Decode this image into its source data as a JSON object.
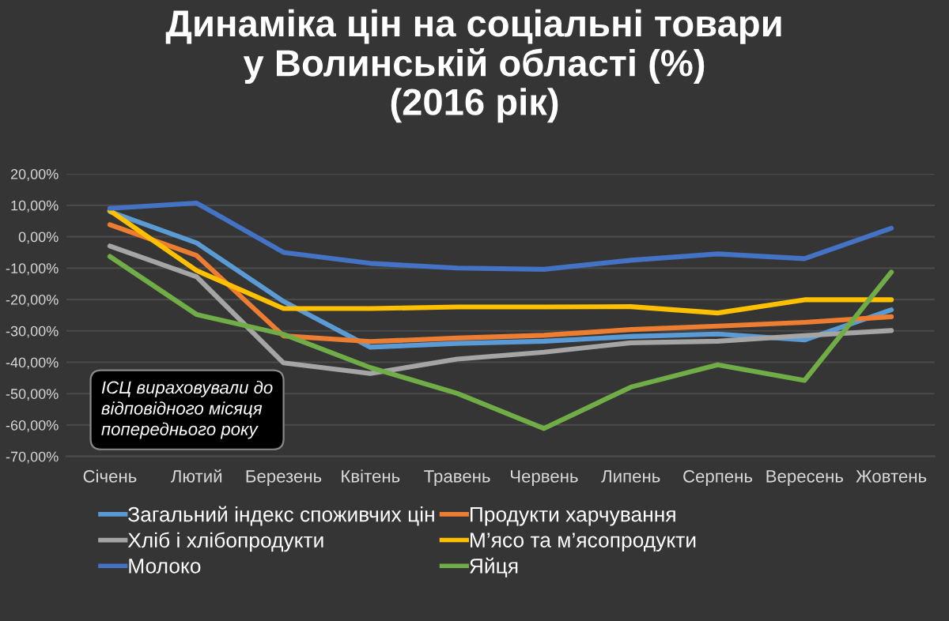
{
  "chart_data": {
    "type": "line",
    "title": "Динаміка цін на соціальні товари\nу Волинській області (%)\n(2016 рік)",
    "categories": [
      "Січень",
      "Лютий",
      "Березень",
      "Квітень",
      "Травень",
      "Червень",
      "Липень",
      "Серпень",
      "Вересень",
      "Жовтень"
    ],
    "series": [
      {
        "name": "Загальний індекс споживчих цін",
        "color": "#5b9bd5",
        "values": [
          8,
          -2,
          -20.6,
          -35.2,
          -34,
          -33.3,
          -31.8,
          -31,
          -32.9,
          -23.3
        ]
      },
      {
        "name": "Продукти харчування",
        "color": "#ed7d31",
        "values": [
          3.8,
          -6,
          -31.6,
          -33.4,
          -32.3,
          -31.4,
          -29.6,
          -28.5,
          -27.3,
          -25.5
        ]
      },
      {
        "name": "Хліб і хлібопродукти",
        "color": "#a5a5a5",
        "values": [
          -3,
          -12.8,
          -40.2,
          -43.6,
          -39,
          -36.8,
          -33.8,
          -33.3,
          -31.5,
          -29.9
        ]
      },
      {
        "name": "М’ясо та м’ясопродукти",
        "color": "#ffc000",
        "values": [
          8.3,
          -10.8,
          -22.9,
          -22.9,
          -22.4,
          -22.4,
          -22.3,
          -24.3,
          -20.1,
          -20.1
        ]
      },
      {
        "name": "Молоко",
        "color": "#4472c4",
        "values": [
          9,
          10.7,
          -5,
          -8.5,
          -10,
          -10.4,
          -7.5,
          -5.5,
          -7,
          2.7
        ]
      },
      {
        "name": "Яйця",
        "color": "#70ad47",
        "values": [
          -6.3,
          -24.8,
          -31.1,
          -41.7,
          -49.9,
          -61.1,
          -47.9,
          -40.8,
          -45.8,
          -11.3
        ]
      }
    ],
    "ylim": [
      -70,
      20
    ],
    "yticks": [
      {
        "value": -70,
        "label": "-70,00%"
      },
      {
        "value": -60,
        "label": "-60,00%"
      },
      {
        "value": -50,
        "label": "-50,00%"
      },
      {
        "value": -40,
        "label": "-40,00%"
      },
      {
        "value": -30,
        "label": "-30,00%"
      },
      {
        "value": -20,
        "label": "-20,00%"
      },
      {
        "value": -10,
        "label": "-10,00%"
      },
      {
        "value": 0,
        "label": "0,00%"
      },
      {
        "value": 10,
        "label": "10,00%"
      },
      {
        "value": 20,
        "label": "20,00%"
      }
    ],
    "grid": "y",
    "legend": "bottom",
    "annotations": [
      "ІСЦ вираховували до\nвідповідного місяця\nпопереднього року"
    ]
  }
}
